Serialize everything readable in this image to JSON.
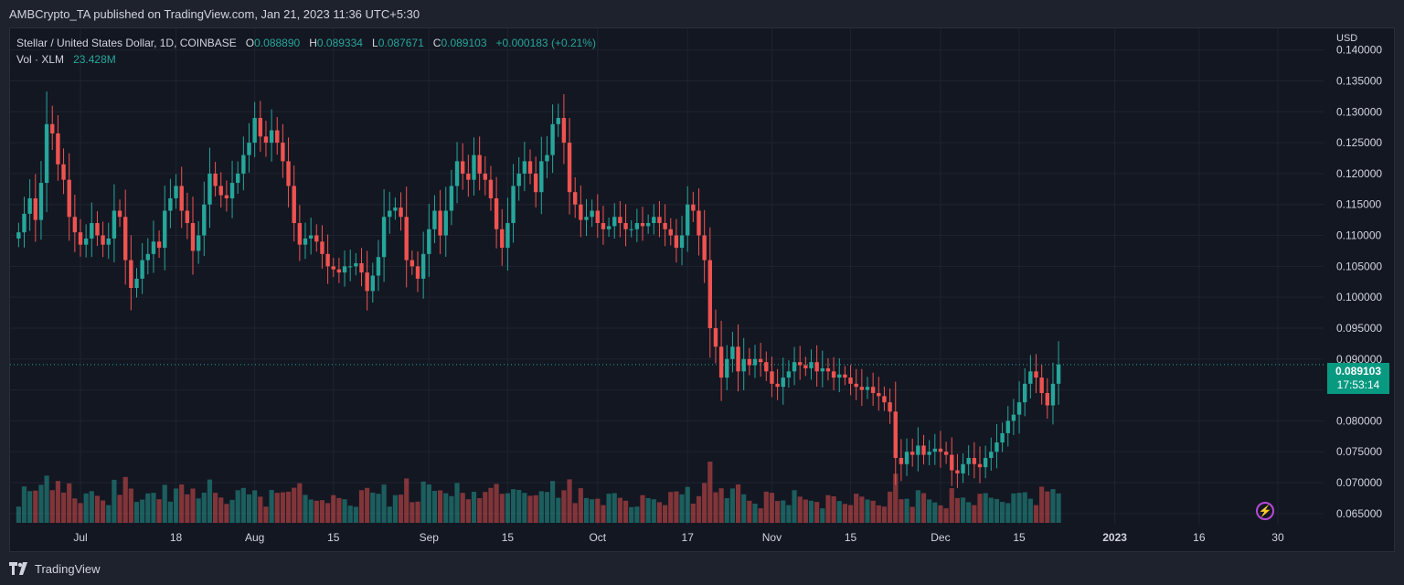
{
  "header": {
    "publisher_line": "AMBCrypto_TA published on TradingView.com, Jan 21, 2023 11:36 UTC+5:30"
  },
  "legend": {
    "symbol": "Stellar / United States Dollar, 1D, COINBASE",
    "o_label": "O",
    "o_value": "0.088890",
    "h_label": "H",
    "h_value": "0.089334",
    "l_label": "L",
    "l_value": "0.087671",
    "c_label": "C",
    "c_value": "0.089103",
    "change": "+0.000183 (+0.21%)",
    "vol_label": "Vol · XLM",
    "vol_value": "23.428M"
  },
  "price_scale": {
    "currency": "USD",
    "last_price": "0.089103",
    "countdown": "17:53:14"
  },
  "footer": {
    "brand": "TradingView"
  },
  "colors": {
    "up": "#26a69a",
    "down": "#ef5350",
    "background": "#131722",
    "grid": "#1f2330"
  },
  "chart_data": {
    "type": "candlestick",
    "symbol": "XLM/USD",
    "interval": "1D",
    "y_ticks": [
      "0.140000",
      "0.135000",
      "0.130000",
      "0.125000",
      "0.120000",
      "0.115000",
      "0.110000",
      "0.105000",
      "0.100000",
      "0.095000",
      "0.090000",
      "0.085000",
      "0.080000",
      "0.075000",
      "0.070000",
      "0.065000"
    ],
    "ylim": [
      0.0635,
      0.1435
    ],
    "x_ticks": [
      "Jul",
      "18",
      "Aug",
      "15",
      "Sep",
      "15",
      "Oct",
      "17",
      "Nov",
      "15",
      "Dec",
      "15",
      "2023",
      "16",
      "30"
    ],
    "x_tick_dates": [
      "2022-07-01",
      "2022-07-18",
      "2022-08-01",
      "2022-08-15",
      "2022-09-01",
      "2022-09-15",
      "2022-10-01",
      "2022-10-17",
      "2022-11-01",
      "2022-11-15",
      "2022-12-01",
      "2022-12-15",
      "2023-01-01",
      "2023-01-16",
      "2023-01-30"
    ],
    "close_series": {
      "start_date": "2022-06-20",
      "values": [
        0.1105,
        0.1135,
        0.116,
        0.1125,
        0.1185,
        0.128,
        0.1265,
        0.1215,
        0.119,
        0.113,
        0.1105,
        0.1085,
        0.1095,
        0.112,
        0.11,
        0.1085,
        0.1095,
        0.114,
        0.113,
        0.106,
        0.1015,
        0.103,
        0.106,
        0.107,
        0.109,
        0.108,
        0.114,
        0.116,
        0.118,
        0.114,
        0.112,
        0.1075,
        0.11,
        0.115,
        0.12,
        0.118,
        0.1165,
        0.116,
        0.1185,
        0.12,
        0.123,
        0.125,
        0.129,
        0.126,
        0.125,
        0.127,
        0.125,
        0.122,
        0.118,
        0.112,
        0.1085,
        0.1095,
        0.11,
        0.109,
        0.107,
        0.105,
        0.1045,
        0.104,
        0.105,
        0.105,
        0.1055,
        0.104,
        0.101,
        0.1035,
        0.1065,
        0.113,
        0.114,
        0.1145,
        0.113,
        0.106,
        0.105,
        0.103,
        0.107,
        0.111,
        0.114,
        0.11,
        0.114,
        0.118,
        0.122,
        0.12,
        0.119,
        0.123,
        0.12,
        0.119,
        0.116,
        0.111,
        0.108,
        0.112,
        0.118,
        0.12,
        0.122,
        0.12,
        0.117,
        0.122,
        0.123,
        0.128,
        0.129,
        0.125,
        0.117,
        0.115,
        0.1125,
        0.113,
        0.114,
        0.112,
        0.111,
        0.1115,
        0.113,
        0.112,
        0.111,
        0.111,
        0.112,
        0.1115,
        0.112,
        0.113,
        0.112,
        0.111,
        0.11,
        0.108,
        0.11,
        0.115,
        0.114,
        0.11,
        0.106,
        0.095,
        0.092,
        0.087,
        0.09,
        0.092,
        0.088,
        0.09,
        0.089,
        0.09,
        0.0895,
        0.088,
        0.086,
        0.0855,
        0.087,
        0.088,
        0.0895,
        0.089,
        0.0885,
        0.0895,
        0.088,
        0.0885,
        0.088,
        0.087,
        0.0875,
        0.087,
        0.086,
        0.0855,
        0.085,
        0.0855,
        0.0845,
        0.084,
        0.083,
        0.0815,
        0.074,
        0.073,
        0.075,
        0.0745,
        0.076,
        0.0745,
        0.075,
        0.0755,
        0.075,
        0.0745,
        0.072,
        0.0715,
        0.073,
        0.074,
        0.073,
        0.0725,
        0.074,
        0.075,
        0.0765,
        0.078,
        0.08,
        0.081,
        0.083,
        0.086,
        0.088,
        0.087,
        0.0845,
        0.0825,
        0.086,
        0.0891
      ]
    },
    "volume_unit": "XLM",
    "last_volume": "23.428M"
  }
}
